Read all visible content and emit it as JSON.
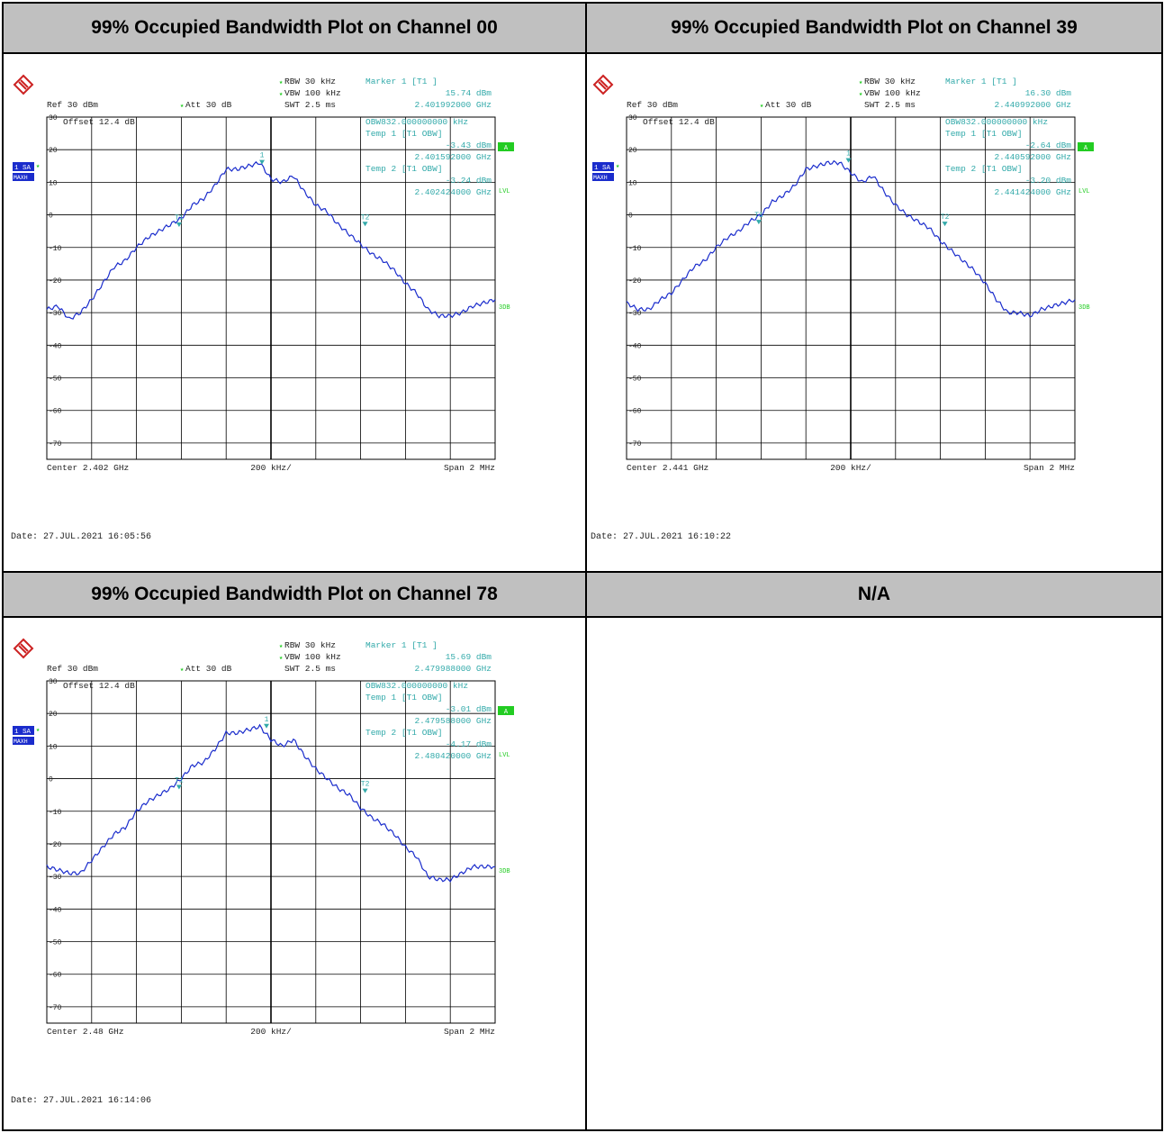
{
  "panels": [
    {
      "title": "99% Occupied Bandwidth Plot on Channel 00",
      "rbw": "RBW 30 kHz",
      "vbw": "VBW 100 kHz",
      "swt": "SWT 2.5 ms",
      "ref": "Ref  30 dBm",
      "att": "Att  30 dB",
      "offset": "Offset  12.4 dB",
      "marker_title": "Marker 1 [T1 ]",
      "marker_level": "15.74 dBm",
      "marker_freq": "2.401992000 GHz",
      "obw": "OBW832.000000000 kHz",
      "temp1": "Temp 1 [T1 OBW]",
      "temp1_level": "-3.43 dBm",
      "temp1_freq": "2.401592000 GHz",
      "temp2": "Temp 2 [T1 OBW]",
      "temp2_level": "-3.24 dBm",
      "temp2_freq": "2.402424000 GHz",
      "center": "Center 2.402 GHz",
      "div": "200 kHz/",
      "span": "Span 2 MHz",
      "date": "Date: 27.JUL.2021  16:05:56"
    },
    {
      "title": "99% Occupied Bandwidth Plot on Channel 39",
      "rbw": "RBW 30 kHz",
      "vbw": "VBW 100 kHz",
      "swt": "SWT 2.5 ms",
      "ref": "Ref  30 dBm",
      "att": "Att  30 dB",
      "offset": "Offset  12.4 dB",
      "marker_title": "Marker 1 [T1 ]",
      "marker_level": "16.30 dBm",
      "marker_freq": "2.440992000 GHz",
      "obw": "OBW832.000000000 kHz",
      "temp1": "Temp 1 [T1 OBW]",
      "temp1_level": "-2.64 dBm",
      "temp1_freq": "2.440592000 GHz",
      "temp2": "Temp 2 [T1 OBW]",
      "temp2_level": "-3.20 dBm",
      "temp2_freq": "2.441424000 GHz",
      "center": "Center 2.441 GHz",
      "div": "200 kHz/",
      "span": "Span 2 MHz",
      "date": "Date: 27.JUL.2021  16:10:22"
    },
    {
      "title": "99% Occupied Bandwidth Plot on Channel 78",
      "rbw": "RBW 30 kHz",
      "vbw": "VBW 100 kHz",
      "swt": "SWT 2.5 ms",
      "ref": "Ref  30 dBm",
      "att": "Att  30 dB",
      "offset": "Offset  12.4 dB",
      "marker_title": "Marker 1 [T1 ]",
      "marker_level": "15.69 dBm",
      "marker_freq": "2.479988000 GHz",
      "obw": "OBW832.000000000 kHz",
      "temp1": "Temp 1 [T1 OBW]",
      "temp1_level": "-3.01 dBm",
      "temp1_freq": "2.479588000 GHz",
      "temp2": "Temp 2 [T1 OBW]",
      "temp2_level": "-4.17 dBm",
      "temp2_freq": "2.480420000 GHz",
      "center": "Center 2.48 GHz",
      "div": "200 kHz/",
      "span": "Span 2 MHz",
      "date": "Date: 27.JUL.2021  16:14:06"
    }
  ],
  "na_title": "N/A",
  "side_labels": {
    "trace": "1 SA",
    "mode": "MAXH",
    "a": "A",
    "lvl": "LVL",
    "threedb": "3DB"
  },
  "marker_labels": {
    "m1": "1",
    "t1": "T1",
    "t2": "T2"
  },
  "colors": {
    "trace": "#1a2ccc",
    "annotation": "#33aaaa",
    "green": "#22cc22",
    "header_bg": "#c0c0c0"
  },
  "chart_data": [
    {
      "type": "line",
      "title": "99% Occupied Bandwidth Plot on Channel 00",
      "xlabel": "",
      "ylabel": "",
      "x_unit": "MHz offset from center",
      "xlim": [
        -1,
        1
      ],
      "ylim": [
        -75,
        30
      ],
      "yticks": [
        30,
        20,
        10,
        0,
        -10,
        -20,
        -30,
        -40,
        -50,
        -60,
        -70
      ],
      "series": [
        {
          "x": [
            -1.0,
            -0.95,
            -0.9,
            -0.85,
            -0.8,
            -0.75,
            -0.7,
            -0.65,
            -0.6,
            -0.55,
            -0.5,
            -0.45,
            -0.4,
            -0.35,
            -0.3,
            -0.25,
            -0.2,
            -0.15,
            -0.1,
            -0.05,
            0.0,
            0.05,
            0.1,
            0.15,
            0.2,
            0.25,
            0.3,
            0.35,
            0.4,
            0.45,
            0.5,
            0.55,
            0.6,
            0.65,
            0.7,
            0.75,
            0.8,
            0.85,
            0.9,
            0.95,
            1.0
          ],
          "values": [
            -29,
            -28,
            -32,
            -30,
            -26,
            -21,
            -16,
            -14,
            -10,
            -7,
            -5,
            -3,
            -1,
            3,
            5,
            9,
            14,
            14,
            15,
            16,
            11,
            10,
            12,
            7,
            3,
            1,
            -3,
            -6,
            -9,
            -12,
            -14,
            -17,
            -21,
            -24,
            -29,
            -31,
            -31,
            -30,
            -28,
            -27,
            -26
          ]
        }
      ],
      "markers": [
        {
          "name": "1",
          "x": -0.04,
          "y": 15.74
        },
        {
          "name": "T1",
          "x": -0.41,
          "y": -3.43
        },
        {
          "name": "T2",
          "x": 0.42,
          "y": -3.24
        }
      ]
    },
    {
      "type": "line",
      "title": "99% Occupied Bandwidth Plot on Channel 39",
      "xlabel": "",
      "ylabel": "",
      "x_unit": "MHz offset from center",
      "xlim": [
        -1,
        1
      ],
      "ylim": [
        -75,
        30
      ],
      "yticks": [
        30,
        20,
        10,
        0,
        -10,
        -20,
        -30,
        -40,
        -50,
        -60,
        -70
      ],
      "series": [
        {
          "x": [
            -1.0,
            -0.95,
            -0.9,
            -0.85,
            -0.8,
            -0.75,
            -0.7,
            -0.65,
            -0.6,
            -0.55,
            -0.5,
            -0.45,
            -0.4,
            -0.35,
            -0.3,
            -0.25,
            -0.2,
            -0.15,
            -0.1,
            -0.05,
            0.0,
            0.05,
            0.1,
            0.15,
            0.2,
            0.25,
            0.3,
            0.35,
            0.4,
            0.45,
            0.5,
            0.55,
            0.6,
            0.65,
            0.7,
            0.75,
            0.8,
            0.85,
            0.9,
            0.95,
            1.0
          ],
          "values": [
            -27,
            -29,
            -29,
            -26,
            -24,
            -20,
            -16,
            -14,
            -10,
            -7,
            -5,
            -2,
            0,
            4,
            6,
            9,
            14,
            15,
            16,
            16,
            13,
            10,
            12,
            7,
            3,
            0,
            -2,
            -4,
            -8,
            -11,
            -14,
            -17,
            -21,
            -26,
            -30,
            -30,
            -31,
            -29,
            -28,
            -27,
            -26
          ]
        }
      ],
      "markers": [
        {
          "name": "1",
          "x": -0.01,
          "y": 16.3
        },
        {
          "name": "T1",
          "x": -0.41,
          "y": -2.64
        },
        {
          "name": "T2",
          "x": 0.42,
          "y": -3.2
        }
      ]
    },
    {
      "type": "line",
      "title": "99% Occupied Bandwidth Plot on Channel 78",
      "xlabel": "",
      "ylabel": "",
      "x_unit": "MHz offset from center",
      "xlim": [
        -1,
        1
      ],
      "ylim": [
        -75,
        30
      ],
      "yticks": [
        30,
        20,
        10,
        0,
        -10,
        -20,
        -30,
        -40,
        -50,
        -60,
        -70
      ],
      "series": [
        {
          "x": [
            -1.0,
            -0.95,
            -0.9,
            -0.85,
            -0.8,
            -0.75,
            -0.7,
            -0.65,
            -0.6,
            -0.55,
            -0.5,
            -0.45,
            -0.4,
            -0.35,
            -0.3,
            -0.25,
            -0.2,
            -0.15,
            -0.1,
            -0.05,
            0.0,
            0.05,
            0.1,
            0.15,
            0.2,
            0.25,
            0.3,
            0.35,
            0.4,
            0.45,
            0.5,
            0.55,
            0.6,
            0.65,
            0.7,
            0.75,
            0.8,
            0.85,
            0.9,
            0.95,
            1.0
          ],
          "values": [
            -27,
            -28,
            -29,
            -29,
            -25,
            -21,
            -17,
            -15,
            -10,
            -7,
            -5,
            -3,
            0,
            4,
            5,
            9,
            14,
            14,
            15,
            16,
            12,
            10,
            12,
            7,
            3,
            0,
            -3,
            -5,
            -9,
            -12,
            -14,
            -17,
            -21,
            -24,
            -30,
            -31,
            -31,
            -29,
            -27,
            -27,
            -27
          ]
        }
      ],
      "markers": [
        {
          "name": "1",
          "x": -0.02,
          "y": 15.69
        },
        {
          "name": "T1",
          "x": -0.41,
          "y": -3.01
        },
        {
          "name": "T2",
          "x": 0.42,
          "y": -4.17
        }
      ]
    }
  ]
}
